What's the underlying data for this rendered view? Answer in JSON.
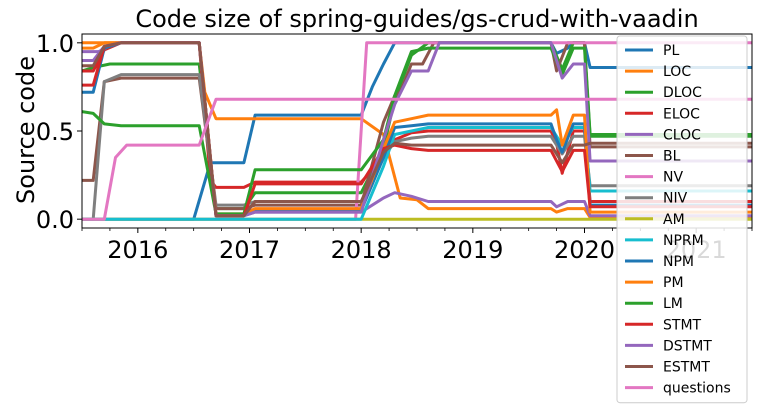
{
  "chart_data": {
    "type": "line",
    "title": "Code size of spring-guides/gs-crud-with-vaadin",
    "xlabel": "",
    "ylabel": "Source code",
    "xlim": [
      2015.5,
      2021.5
    ],
    "ylim": [
      -0.05,
      1.05
    ],
    "x_ticks": [
      {
        "value": 2016,
        "label": "2016"
      },
      {
        "value": 2017,
        "label": "2017"
      },
      {
        "value": 2018,
        "label": "2018"
      },
      {
        "value": 2019,
        "label": "2019"
      },
      {
        "value": 2020,
        "label": "2020"
      },
      {
        "value": 2021,
        "label": "2021"
      }
    ],
    "y_ticks": [
      {
        "value": 0.0,
        "label": "0.0"
      },
      {
        "value": 0.5,
        "label": "0.5"
      },
      {
        "value": 1.0,
        "label": "1.0"
      }
    ],
    "grid": false,
    "legend_position": "right",
    "series": [
      {
        "name": "PL",
        "color": "#1f77b4",
        "points": [
          [
            2015.5,
            0.0
          ],
          [
            2016.5,
            0.0
          ],
          [
            2016.65,
            0.32
          ],
          [
            2016.95,
            0.32
          ],
          [
            2017.05,
            0.59
          ],
          [
            2018.0,
            0.59
          ],
          [
            2018.1,
            0.75
          ],
          [
            2018.2,
            0.88
          ],
          [
            2018.3,
            1.0
          ],
          [
            2019.7,
            1.0
          ],
          [
            2019.75,
            0.94
          ],
          [
            2019.85,
            0.97
          ],
          [
            2019.9,
            1.0
          ],
          [
            2020.0,
            1.0
          ],
          [
            2020.05,
            0.86
          ],
          [
            2021.5,
            0.86
          ]
        ]
      },
      {
        "name": "LOC",
        "color": "#ff7f0e",
        "points": [
          [
            2015.5,
            1.0
          ],
          [
            2016.55,
            1.0
          ],
          [
            2016.6,
            0.72
          ],
          [
            2016.7,
            0.57
          ],
          [
            2018.0,
            0.57
          ],
          [
            2018.2,
            0.48
          ],
          [
            2018.35,
            0.12
          ],
          [
            2018.5,
            0.11
          ],
          [
            2018.6,
            0.06
          ],
          [
            2019.7,
            0.06
          ],
          [
            2019.75,
            0.04
          ],
          [
            2019.85,
            0.06
          ],
          [
            2019.9,
            0.06
          ],
          [
            2020.0,
            0.06
          ],
          [
            2020.05,
            0.01
          ],
          [
            2021.5,
            0.01
          ]
        ]
      },
      {
        "name": "DLOC",
        "color": "#2ca02c",
        "points": [
          [
            2015.5,
            0.84
          ],
          [
            2015.6,
            0.86
          ],
          [
            2015.75,
            0.88
          ],
          [
            2016.55,
            0.88
          ],
          [
            2016.7,
            0.06
          ],
          [
            2016.95,
            0.06
          ],
          [
            2017.05,
            0.15
          ],
          [
            2018.0,
            0.15
          ],
          [
            2018.2,
            0.4
          ],
          [
            2018.3,
            0.68
          ],
          [
            2018.45,
            0.93
          ],
          [
            2018.6,
            1.0
          ],
          [
            2019.7,
            1.0
          ],
          [
            2019.8,
            0.85
          ],
          [
            2019.9,
            1.0
          ],
          [
            2020.0,
            1.0
          ],
          [
            2020.05,
            0.48
          ],
          [
            2021.5,
            0.48
          ]
        ]
      },
      {
        "name": "ELOC",
        "color": "#d62728",
        "points": [
          [
            2015.5,
            0.84
          ],
          [
            2015.6,
            0.84
          ],
          [
            2015.7,
            0.96
          ],
          [
            2015.85,
            1.0
          ],
          [
            2016.55,
            1.0
          ],
          [
            2016.65,
            0.22
          ],
          [
            2016.7,
            0.18
          ],
          [
            2016.95,
            0.18
          ],
          [
            2017.05,
            0.21
          ],
          [
            2018.0,
            0.21
          ],
          [
            2018.2,
            0.35
          ],
          [
            2018.3,
            0.45
          ],
          [
            2018.45,
            0.49
          ],
          [
            2018.6,
            0.5
          ],
          [
            2019.7,
            0.5
          ],
          [
            2019.75,
            0.43
          ],
          [
            2019.8,
            0.26
          ],
          [
            2019.9,
            0.5
          ],
          [
            2020.0,
            0.5
          ],
          [
            2020.05,
            0.1
          ],
          [
            2021.5,
            0.1
          ]
        ]
      },
      {
        "name": "CLOC",
        "color": "#9467bd",
        "points": [
          [
            2015.5,
            0.95
          ],
          [
            2015.65,
            0.95
          ],
          [
            2015.8,
            1.0
          ],
          [
            2016.55,
            1.0
          ],
          [
            2016.7,
            0.02
          ],
          [
            2016.95,
            0.02
          ],
          [
            2017.05,
            0.04
          ],
          [
            2018.0,
            0.04
          ],
          [
            2018.2,
            0.12
          ],
          [
            2018.3,
            0.15
          ],
          [
            2018.45,
            0.13
          ],
          [
            2018.6,
            0.1
          ],
          [
            2019.7,
            0.1
          ],
          [
            2019.75,
            0.07
          ],
          [
            2019.85,
            0.1
          ],
          [
            2020.0,
            0.1
          ],
          [
            2020.05,
            0.02
          ],
          [
            2021.5,
            0.02
          ]
        ]
      },
      {
        "name": "BL",
        "color": "#8c564b",
        "points": [
          [
            2015.5,
            0.22
          ],
          [
            2015.6,
            0.22
          ],
          [
            2015.7,
            0.78
          ],
          [
            2015.85,
            0.8
          ],
          [
            2016.55,
            0.8
          ],
          [
            2016.7,
            0.06
          ],
          [
            2016.95,
            0.06
          ],
          [
            2017.05,
            0.08
          ],
          [
            2018.0,
            0.08
          ],
          [
            2018.2,
            0.55
          ],
          [
            2018.3,
            0.7
          ],
          [
            2018.35,
            0.72
          ],
          [
            2018.45,
            0.88
          ],
          [
            2018.55,
            0.88
          ],
          [
            2018.65,
            1.0
          ],
          [
            2019.7,
            1.0
          ],
          [
            2019.75,
            0.84
          ],
          [
            2019.85,
            1.0
          ],
          [
            2020.0,
            1.0
          ],
          [
            2020.05,
            0.41
          ],
          [
            2021.5,
            0.41
          ]
        ]
      },
      {
        "name": "NV",
        "color": "#e377c2",
        "points": [
          [
            2015.5,
            0.0
          ],
          [
            2017.95,
            0.0
          ],
          [
            2018.05,
            1.0
          ],
          [
            2021.5,
            1.0
          ]
        ]
      },
      {
        "name": "NIV",
        "color": "#7f7f7f",
        "points": [
          [
            2015.5,
            0.0
          ],
          [
            2015.6,
            0.0
          ],
          [
            2015.7,
            0.78
          ],
          [
            2015.85,
            0.82
          ],
          [
            2016.55,
            0.82
          ],
          [
            2016.7,
            0.08
          ],
          [
            2016.95,
            0.08
          ],
          [
            2017.05,
            0.1
          ],
          [
            2018.0,
            0.1
          ],
          [
            2018.2,
            0.35
          ],
          [
            2018.3,
            0.44
          ],
          [
            2018.45,
            0.46
          ],
          [
            2018.6,
            0.47
          ],
          [
            2019.7,
            0.47
          ],
          [
            2019.75,
            0.42
          ],
          [
            2019.8,
            0.37
          ],
          [
            2019.9,
            0.47
          ],
          [
            2020.0,
            0.47
          ],
          [
            2020.05,
            0.19
          ],
          [
            2021.5,
            0.19
          ]
        ]
      },
      {
        "name": "AM",
        "color": "#bcbd22",
        "points": [
          [
            2015.5,
            0.0
          ],
          [
            2021.5,
            0.0
          ]
        ]
      },
      {
        "name": "NPRM",
        "color": "#17becf",
        "points": [
          [
            2015.5,
            0.0
          ],
          [
            2018.0,
            0.0
          ],
          [
            2018.2,
            0.3
          ],
          [
            2018.3,
            0.48
          ],
          [
            2018.45,
            0.5
          ],
          [
            2018.6,
            0.52
          ],
          [
            2019.7,
            0.52
          ],
          [
            2019.75,
            0.47
          ],
          [
            2019.8,
            0.42
          ],
          [
            2019.9,
            0.52
          ],
          [
            2020.0,
            0.52
          ],
          [
            2020.05,
            0.16
          ],
          [
            2021.5,
            0.16
          ]
        ]
      },
      {
        "name": "NPM",
        "color": "#1f77b4",
        "points": [
          [
            2015.5,
            0.72
          ],
          [
            2015.6,
            0.72
          ],
          [
            2015.7,
            0.97
          ],
          [
            2015.85,
            1.0
          ],
          [
            2016.55,
            1.0
          ],
          [
            2016.7,
            0.02
          ],
          [
            2016.95,
            0.02
          ],
          [
            2017.05,
            0.05
          ],
          [
            2018.0,
            0.05
          ],
          [
            2018.2,
            0.35
          ],
          [
            2018.3,
            0.52
          ],
          [
            2018.45,
            0.53
          ],
          [
            2018.6,
            0.54
          ],
          [
            2019.7,
            0.54
          ],
          [
            2019.75,
            0.45
          ],
          [
            2019.8,
            0.38
          ],
          [
            2019.9,
            0.54
          ],
          [
            2020.0,
            0.54
          ],
          [
            2020.05,
            0.08
          ],
          [
            2021.5,
            0.08
          ]
        ]
      },
      {
        "name": "PM",
        "color": "#ff7f0e",
        "points": [
          [
            2015.5,
            0.97
          ],
          [
            2015.6,
            0.97
          ],
          [
            2015.7,
            1.0
          ],
          [
            2016.55,
            1.0
          ],
          [
            2016.7,
            0.03
          ],
          [
            2016.95,
            0.03
          ],
          [
            2017.05,
            0.06
          ],
          [
            2018.0,
            0.06
          ],
          [
            2018.2,
            0.4
          ],
          [
            2018.3,
            0.55
          ],
          [
            2018.45,
            0.57
          ],
          [
            2018.6,
            0.59
          ],
          [
            2019.7,
            0.59
          ],
          [
            2019.75,
            0.62
          ],
          [
            2019.8,
            0.42
          ],
          [
            2019.9,
            0.59
          ],
          [
            2020.0,
            0.59
          ],
          [
            2020.05,
            0.04
          ],
          [
            2021.5,
            0.04
          ]
        ]
      },
      {
        "name": "LM",
        "color": "#2ca02c",
        "points": [
          [
            2015.5,
            0.61
          ],
          [
            2015.6,
            0.6
          ],
          [
            2015.7,
            0.54
          ],
          [
            2015.85,
            0.53
          ],
          [
            2016.55,
            0.53
          ],
          [
            2016.7,
            0.03
          ],
          [
            2016.95,
            0.03
          ],
          [
            2017.05,
            0.28
          ],
          [
            2018.0,
            0.28
          ],
          [
            2018.2,
            0.45
          ],
          [
            2018.3,
            0.7
          ],
          [
            2018.45,
            0.95
          ],
          [
            2018.6,
            0.97
          ],
          [
            2019.7,
            0.97
          ],
          [
            2019.8,
            0.82
          ],
          [
            2019.9,
            0.97
          ],
          [
            2020.0,
            0.97
          ],
          [
            2020.05,
            0.47
          ],
          [
            2021.5,
            0.47
          ]
        ]
      },
      {
        "name": "STMT",
        "color": "#d62728",
        "points": [
          [
            2015.5,
            0.76
          ],
          [
            2015.6,
            0.76
          ],
          [
            2015.7,
            0.98
          ],
          [
            2015.85,
            1.0
          ],
          [
            2016.55,
            1.0
          ],
          [
            2016.7,
            0.02
          ],
          [
            2016.95,
            0.02
          ],
          [
            2017.05,
            0.2
          ],
          [
            2018.0,
            0.2
          ],
          [
            2018.2,
            0.4
          ],
          [
            2018.3,
            0.42
          ],
          [
            2018.45,
            0.4
          ],
          [
            2018.6,
            0.39
          ],
          [
            2019.7,
            0.39
          ],
          [
            2019.8,
            0.27
          ],
          [
            2019.9,
            0.39
          ],
          [
            2020.0,
            0.39
          ],
          [
            2020.05,
            0.07
          ],
          [
            2021.5,
            0.07
          ]
        ]
      },
      {
        "name": "DSTMT",
        "color": "#9467bd",
        "points": [
          [
            2015.5,
            0.9
          ],
          [
            2015.6,
            0.9
          ],
          [
            2015.7,
            0.98
          ],
          [
            2015.85,
            1.0
          ],
          [
            2016.55,
            1.0
          ],
          [
            2016.7,
            0.02
          ],
          [
            2016.95,
            0.02
          ],
          [
            2017.05,
            0.04
          ],
          [
            2018.0,
            0.04
          ],
          [
            2018.2,
            0.45
          ],
          [
            2018.3,
            0.65
          ],
          [
            2018.45,
            0.84
          ],
          [
            2018.6,
            0.84
          ],
          [
            2018.7,
            1.0
          ],
          [
            2019.7,
            1.0
          ],
          [
            2019.8,
            0.8
          ],
          [
            2019.9,
            0.88
          ],
          [
            2020.0,
            0.88
          ],
          [
            2020.05,
            0.33
          ],
          [
            2021.5,
            0.33
          ]
        ]
      },
      {
        "name": "ESTMT",
        "color": "#8c564b",
        "points": [
          [
            2015.5,
            0.87
          ],
          [
            2015.6,
            0.87
          ],
          [
            2015.7,
            0.98
          ],
          [
            2015.85,
            1.0
          ],
          [
            2016.55,
            1.0
          ],
          [
            2016.7,
            0.02
          ],
          [
            2016.95,
            0.02
          ],
          [
            2017.05,
            0.1
          ],
          [
            2018.0,
            0.1
          ],
          [
            2018.2,
            0.38
          ],
          [
            2018.3,
            0.43
          ],
          [
            2018.45,
            0.42
          ],
          [
            2018.6,
            0.42
          ],
          [
            2019.7,
            0.42
          ],
          [
            2019.8,
            0.32
          ],
          [
            2019.9,
            0.42
          ],
          [
            2020.0,
            0.42
          ],
          [
            2020.05,
            0.43
          ],
          [
            2021.5,
            0.43
          ]
        ]
      },
      {
        "name": "questions",
        "color": "#e377c2",
        "points": [
          [
            2015.5,
            0.0
          ],
          [
            2015.7,
            0.0
          ],
          [
            2015.8,
            0.35
          ],
          [
            2015.9,
            0.42
          ],
          [
            2016.55,
            0.42
          ],
          [
            2016.7,
            0.68
          ],
          [
            2018.0,
            0.68
          ],
          [
            2018.05,
            0.68
          ],
          [
            2018.2,
            0.68
          ],
          [
            2021.5,
            0.68
          ]
        ]
      }
    ]
  }
}
